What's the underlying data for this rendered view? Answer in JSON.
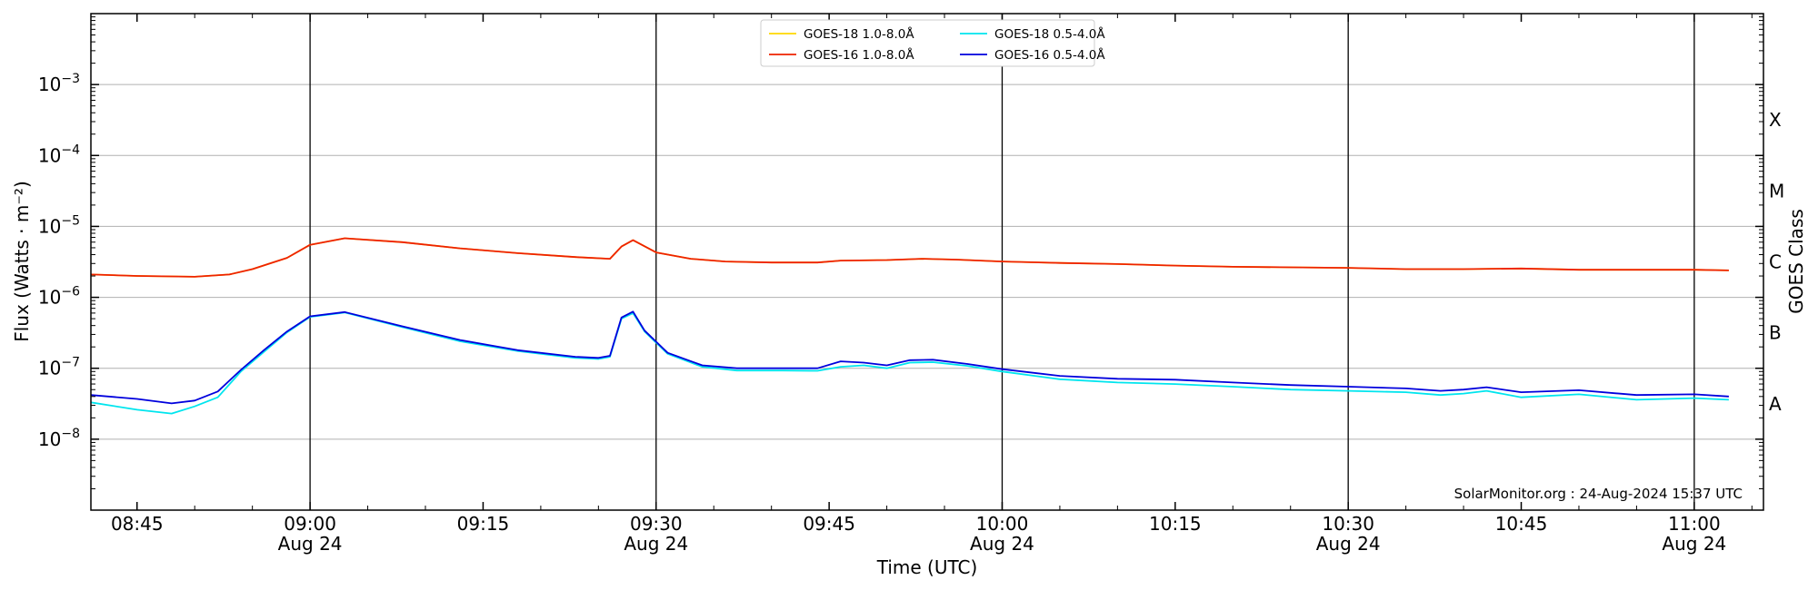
{
  "chart_data": {
    "type": "line",
    "xlabel": "Time (UTC)",
    "ylabel": "Flux (Watts · m⁻²)",
    "y2label": "GOES Class",
    "yscale": "log",
    "xlim": [
      "08:41",
      "11:06"
    ],
    "ylim": [
      1e-09,
      0.01
    ],
    "grid": "horizontal",
    "legend_location": "top-center",
    "x_ticks": [
      {
        "time": "08:45",
        "line1": "08:45",
        "line2": ""
      },
      {
        "time": "09:00",
        "line1": "09:00",
        "line2": "Aug 24"
      },
      {
        "time": "09:15",
        "line1": "09:15",
        "line2": ""
      },
      {
        "time": "09:30",
        "line1": "09:30",
        "line2": "Aug 24"
      },
      {
        "time": "09:45",
        "line1": "09:45",
        "line2": ""
      },
      {
        "time": "10:00",
        "line1": "10:00",
        "line2": "Aug 24"
      },
      {
        "time": "10:15",
        "line1": "10:15",
        "line2": ""
      },
      {
        "time": "10:30",
        "line1": "10:30",
        "line2": "Aug 24"
      },
      {
        "time": "10:45",
        "line1": "10:45",
        "line2": ""
      },
      {
        "time": "11:00",
        "line1": "11:00",
        "line2": "Aug 24"
      }
    ],
    "y_ticks": [
      {
        "exp": -8,
        "base": "10",
        "sup": "−8"
      },
      {
        "exp": -7,
        "base": "10",
        "sup": "−7"
      },
      {
        "exp": -6,
        "base": "10",
        "sup": "−6"
      },
      {
        "exp": -5,
        "base": "10",
        "sup": "−5"
      },
      {
        "exp": -4,
        "base": "10",
        "sup": "−4"
      },
      {
        "exp": -3,
        "base": "10",
        "sup": "−3"
      }
    ],
    "goes_classes": [
      {
        "label": "A",
        "exp": -8
      },
      {
        "label": "B",
        "exp": -7
      },
      {
        "label": "C",
        "exp": -6
      },
      {
        "label": "M",
        "exp": -5
      },
      {
        "label": "X",
        "exp": -4
      }
    ],
    "vertical_lines": [
      "09:00",
      "09:30",
      "10:00",
      "10:30",
      "11:00"
    ],
    "annotation": "SolarMonitor.org : 24-Aug-2024 15:37 UTC",
    "series": [
      {
        "name": "GOES-18 1.0-8.0Å",
        "color": "#FFD700",
        "x": [
          "08:41",
          "08:45",
          "08:50",
          "08:53",
          "08:55",
          "08:58",
          "09:00",
          "09:03",
          "09:08",
          "09:13",
          "09:18",
          "09:23",
          "09:26",
          "09:27",
          "09:28",
          "09:30",
          "09:33",
          "09:36",
          "09:40",
          "09:44",
          "09:46",
          "09:50",
          "09:53",
          "09:56",
          "10:00",
          "10:05",
          "10:10",
          "10:15",
          "10:20",
          "10:25",
          "10:30",
          "10:35",
          "10:40",
          "10:45",
          "10:50",
          "10:55",
          "11:00",
          "11:03"
        ],
        "y": [
          2.1e-06,
          2e-06,
          1.95e-06,
          2.1e-06,
          2.5e-06,
          3.6e-06,
          5.5e-06,
          6.8e-06,
          6e-06,
          4.9e-06,
          4.2e-06,
          3.7e-06,
          3.5e-06,
          5.2e-06,
          6.4e-06,
          4.3e-06,
          3.5e-06,
          3.2e-06,
          3.1e-06,
          3.1e-06,
          3.3e-06,
          3.35e-06,
          3.5e-06,
          3.4e-06,
          3.2e-06,
          3.05e-06,
          2.95e-06,
          2.8e-06,
          2.7e-06,
          2.65e-06,
          2.6e-06,
          2.5e-06,
          2.5e-06,
          2.55e-06,
          2.45e-06,
          2.45e-06,
          2.45e-06,
          2.4e-06
        ]
      },
      {
        "name": "GOES-16 1.0-8.0Å",
        "color": "#EE2200",
        "x": [
          "08:41",
          "08:45",
          "08:50",
          "08:53",
          "08:55",
          "08:58",
          "09:00",
          "09:03",
          "09:08",
          "09:13",
          "09:18",
          "09:23",
          "09:26",
          "09:27",
          "09:28",
          "09:30",
          "09:33",
          "09:36",
          "09:40",
          "09:44",
          "09:46",
          "09:50",
          "09:53",
          "09:56",
          "10:00",
          "10:05",
          "10:10",
          "10:15",
          "10:20",
          "10:25",
          "10:30",
          "10:35",
          "10:40",
          "10:45",
          "10:50",
          "10:55",
          "11:00",
          "11:03"
        ],
        "y": [
          2.1e-06,
          2e-06,
          1.95e-06,
          2.1e-06,
          2.5e-06,
          3.6e-06,
          5.5e-06,
          6.8e-06,
          6e-06,
          4.9e-06,
          4.2e-06,
          3.7e-06,
          3.5e-06,
          5.2e-06,
          6.4e-06,
          4.3e-06,
          3.5e-06,
          3.2e-06,
          3.1e-06,
          3.1e-06,
          3.3e-06,
          3.35e-06,
          3.5e-06,
          3.4e-06,
          3.2e-06,
          3.05e-06,
          2.95e-06,
          2.8e-06,
          2.7e-06,
          2.65e-06,
          2.6e-06,
          2.5e-06,
          2.5e-06,
          2.55e-06,
          2.45e-06,
          2.45e-06,
          2.45e-06,
          2.4e-06
        ]
      },
      {
        "name": "GOES-18 0.5-4.0Å",
        "color": "#00E5EE",
        "x": [
          "08:41",
          "08:45",
          "08:48",
          "08:50",
          "08:52",
          "08:54",
          "08:56",
          "08:58",
          "09:00",
          "09:03",
          "09:08",
          "09:13",
          "09:18",
          "09:23",
          "09:25",
          "09:26",
          "09:27",
          "09:28",
          "09:29",
          "09:31",
          "09:34",
          "09:37",
          "09:41",
          "09:44",
          "09:46",
          "09:48",
          "09:50",
          "09:52",
          "09:54",
          "09:57",
          "10:00",
          "10:05",
          "10:10",
          "10:15",
          "10:20",
          "10:25",
          "10:30",
          "10:35",
          "10:38",
          "10:40",
          "10:42",
          "10:45",
          "10:50",
          "10:55",
          "11:00",
          "11:03"
        ],
        "y": [
          3.3e-08,
          2.6e-08,
          2.3e-08,
          2.9e-08,
          3.9e-08,
          9e-08,
          1.7e-07,
          3.2e-07,
          5.3e-07,
          6.1e-07,
          3.8e-07,
          2.4e-07,
          1.75e-07,
          1.4e-07,
          1.35e-07,
          1.45e-07,
          5e-07,
          6e-07,
          3.3e-07,
          1.6e-07,
          1.05e-07,
          9.3e-08,
          9.3e-08,
          9.2e-08,
          1.05e-07,
          1.1e-07,
          1e-07,
          1.2e-07,
          1.22e-07,
          1.08e-07,
          9e-08,
          7e-08,
          6.3e-08,
          6e-08,
          5.5e-08,
          5e-08,
          4.8e-08,
          4.6e-08,
          4.2e-08,
          4.4e-08,
          4.8e-08,
          3.9e-08,
          4.3e-08,
          3.6e-08,
          3.8e-08,
          3.6e-08
        ]
      },
      {
        "name": "GOES-16 0.5-4.0Å",
        "color": "#0000DD",
        "x": [
          "08:41",
          "08:45",
          "08:48",
          "08:50",
          "08:52",
          "08:54",
          "08:56",
          "08:58",
          "09:00",
          "09:03",
          "09:08",
          "09:13",
          "09:18",
          "09:23",
          "09:25",
          "09:26",
          "09:27",
          "09:28",
          "09:29",
          "09:31",
          "09:34",
          "09:37",
          "09:41",
          "09:44",
          "09:46",
          "09:48",
          "09:50",
          "09:52",
          "09:54",
          "09:57",
          "10:00",
          "10:05",
          "10:10",
          "10:15",
          "10:20",
          "10:25",
          "10:30",
          "10:35",
          "10:38",
          "10:40",
          "10:42",
          "10:45",
          "10:50",
          "10:55",
          "11:00",
          "11:03"
        ],
        "y": [
          4.2e-08,
          3.7e-08,
          3.2e-08,
          3.5e-08,
          4.7e-08,
          9.5e-08,
          1.8e-07,
          3.3e-07,
          5.4e-07,
          6.2e-07,
          3.9e-07,
          2.5e-07,
          1.8e-07,
          1.45e-07,
          1.4e-07,
          1.5e-07,
          5.2e-07,
          6.3e-07,
          3.4e-07,
          1.65e-07,
          1.1e-07,
          1e-07,
          1e-07,
          1e-07,
          1.25e-07,
          1.2e-07,
          1.1e-07,
          1.3e-07,
          1.32e-07,
          1.15e-07,
          9.7e-08,
          7.8e-08,
          7.1e-08,
          6.9e-08,
          6.3e-08,
          5.8e-08,
          5.5e-08,
          5.2e-08,
          4.8e-08,
          5e-08,
          5.4e-08,
          4.6e-08,
          4.9e-08,
          4.2e-08,
          4.3e-08,
          4e-08
        ]
      }
    ]
  }
}
